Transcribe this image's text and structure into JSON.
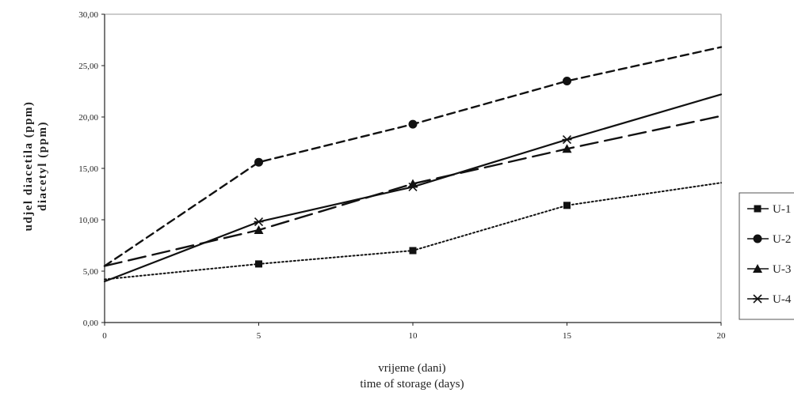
{
  "chart_data": {
    "type": "line",
    "title": "",
    "xlabel": [
      "vrijeme (dani)",
      "time of storage (days)"
    ],
    "ylabel": [
      "udjel diacetila (ppm)",
      "diacetyl (ppm)"
    ],
    "xlim": [
      0,
      20
    ],
    "ylim": [
      0,
      30
    ],
    "x_ticks": [
      "0",
      "5",
      "10",
      "15",
      "20"
    ],
    "y_ticks": [
      "0,00",
      "5,00",
      "10,00",
      "15,00",
      "20,00",
      "25,00",
      "30,00"
    ],
    "grid": false,
    "legend_position": "right",
    "x": [
      0,
      5,
      10,
      15,
      20
    ],
    "series": [
      {
        "name": "U-1",
        "values": [
          4.2,
          5.7,
          7.0,
          11.4,
          13.6
        ],
        "marker": "square",
        "dash": "dotted",
        "color": "#111111"
      },
      {
        "name": "U-2",
        "values": [
          5.5,
          15.6,
          19.3,
          23.5,
          26.8
        ],
        "marker": "circle",
        "dash": "dashed",
        "color": "#111111"
      },
      {
        "name": "U-3",
        "values": [
          5.5,
          9.0,
          13.5,
          16.9,
          20.1
        ],
        "marker": "triangle",
        "dash": "long-dash",
        "color": "#111111"
      },
      {
        "name": "U-4",
        "values": [
          4.0,
          9.8,
          13.2,
          17.8,
          22.2
        ],
        "marker": "star",
        "dash": "solid",
        "color": "#111111"
      }
    ]
  }
}
